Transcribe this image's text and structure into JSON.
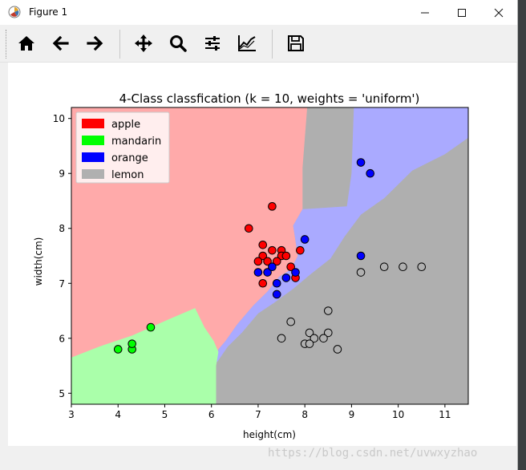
{
  "window": {
    "title": "Figure 1",
    "icons": {
      "app": "matplotlib-icon",
      "minimize": "minimize-icon",
      "maximize": "maximize-icon",
      "close": "close-icon"
    }
  },
  "toolbar": {
    "buttons": [
      {
        "name": "home-icon",
        "tooltip": "Home"
      },
      {
        "name": "back-arrow-icon",
        "tooltip": "Back"
      },
      {
        "name": "forward-arrow-icon",
        "tooltip": "Forward"
      },
      {
        "name": "pan-icon",
        "tooltip": "Pan"
      },
      {
        "name": "zoom-icon",
        "tooltip": "Zoom"
      },
      {
        "name": "subplots-icon",
        "tooltip": "Subplots"
      },
      {
        "name": "edit-axis-icon",
        "tooltip": "Customize"
      },
      {
        "name": "save-icon",
        "tooltip": "Save"
      }
    ]
  },
  "status": {
    "text": "",
    "watermark": "https://blog.csdn.net/uvwxyzhao"
  },
  "chart_data": {
    "type": "scatter",
    "title": "4-Class classfication (k = 10, weights = 'uniform')",
    "xlabel": "height(cm)",
    "ylabel": "width(cm)",
    "xlim": [
      3,
      11.5
    ],
    "ylim": [
      4.8,
      10.2
    ],
    "xticks": [
      "3",
      "4",
      "5",
      "6",
      "7",
      "8",
      "9",
      "10",
      "11"
    ],
    "yticks": [
      "5",
      "6",
      "7",
      "8",
      "9",
      "10"
    ],
    "legend": {
      "position": "top-left"
    },
    "regions": {
      "apple": "#ffaaaa",
      "mandarin": "#aaffaa",
      "orange": "#aaaaff",
      "lemon": "#afafaf"
    },
    "series": [
      {
        "name": "apple",
        "color": "#ff0000",
        "points": [
          [
            6.8,
            8.0
          ],
          [
            7.3,
            8.4
          ],
          [
            7.1,
            7.7
          ],
          [
            7.1,
            7.5
          ],
          [
            7.3,
            7.6
          ],
          [
            7.5,
            7.6
          ],
          [
            7.5,
            7.5
          ],
          [
            7.6,
            7.5
          ],
          [
            7.0,
            7.4
          ],
          [
            7.2,
            7.4
          ],
          [
            7.4,
            7.4
          ],
          [
            7.7,
            7.3
          ],
          [
            7.9,
            7.6
          ],
          [
            7.8,
            7.1
          ],
          [
            7.1,
            7.0
          ]
        ]
      },
      {
        "name": "mandarin",
        "color": "#00ff00",
        "points": [
          [
            4.0,
            5.8
          ],
          [
            4.3,
            5.8
          ],
          [
            4.3,
            5.9
          ],
          [
            4.7,
            6.2
          ]
        ]
      },
      {
        "name": "orange",
        "color": "#0000ff",
        "points": [
          [
            9.2,
            9.2
          ],
          [
            9.4,
            9.0
          ],
          [
            8.0,
            7.8
          ],
          [
            9.2,
            7.5
          ],
          [
            7.0,
            7.2
          ],
          [
            7.2,
            7.2
          ],
          [
            7.3,
            7.3
          ],
          [
            7.6,
            7.1
          ],
          [
            7.8,
            7.2
          ],
          [
            7.4,
            7.0
          ],
          [
            7.4,
            6.8
          ]
        ]
      },
      {
        "name": "lemon",
        "color": "#b0b0b0",
        "points": [
          [
            9.7,
            7.3
          ],
          [
            10.1,
            7.3
          ],
          [
            10.5,
            7.3
          ],
          [
            9.2,
            7.2
          ],
          [
            8.5,
            6.5
          ],
          [
            7.7,
            6.3
          ],
          [
            8.1,
            6.1
          ],
          [
            8.5,
            6.1
          ],
          [
            7.5,
            6.0
          ],
          [
            8.2,
            6.0
          ],
          [
            8.4,
            6.0
          ],
          [
            8.0,
            5.9
          ],
          [
            8.1,
            5.9
          ],
          [
            8.7,
            5.8
          ]
        ]
      }
    ]
  }
}
